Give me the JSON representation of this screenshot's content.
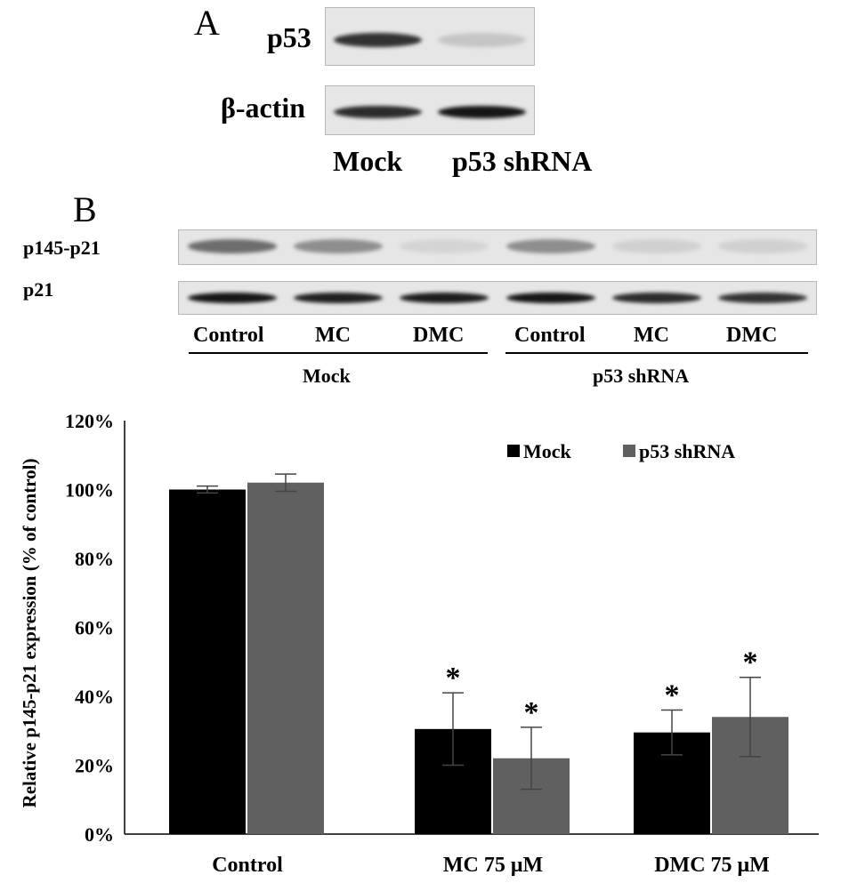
{
  "panel_a": {
    "letter": "A",
    "rows": [
      {
        "label": "p53",
        "bands": [
          0.82,
          0.15
        ]
      },
      {
        "label": "β-actin",
        "bands": [
          0.85,
          0.95
        ]
      }
    ],
    "lanes": [
      "Mock",
      "p53 shRNA"
    ]
  },
  "panel_b": {
    "letter": "B",
    "rows": [
      {
        "label": "p145-p21",
        "bands": [
          0.55,
          0.4,
          0.08,
          0.4,
          0.1,
          0.1
        ]
      },
      {
        "label": "p21",
        "bands": [
          0.95,
          0.9,
          0.92,
          0.95,
          0.85,
          0.82
        ]
      }
    ],
    "lanes": [
      "Control",
      "MC",
      "DMC",
      "Control",
      "MC",
      "DMC"
    ],
    "groups": [
      "Mock",
      "p53 shRNA"
    ]
  },
  "chart_data": {
    "type": "bar",
    "categories": [
      "Control",
      "MC 75 μM",
      "DMC 75 μM"
    ],
    "series": [
      {
        "name": "Mock",
        "color": "#000000",
        "values": [
          100,
          30.5,
          29.5
        ],
        "errors": [
          1,
          10.5,
          6.5
        ],
        "sig": [
          "",
          "*",
          "*"
        ]
      },
      {
        "name": "p53 shRNA",
        "color": "#606060",
        "values": [
          102,
          22,
          34
        ],
        "errors": [
          2.5,
          9,
          11.5
        ],
        "sig": [
          "",
          "*",
          "*"
        ]
      }
    ],
    "ylabel": "Relative p145-p21 expression (% of control)",
    "yticks": [
      "0%",
      "20%",
      "40%",
      "60%",
      "80%",
      "100%",
      "120%"
    ],
    "ylim": [
      0,
      120
    ],
    "legend": "top-right"
  }
}
